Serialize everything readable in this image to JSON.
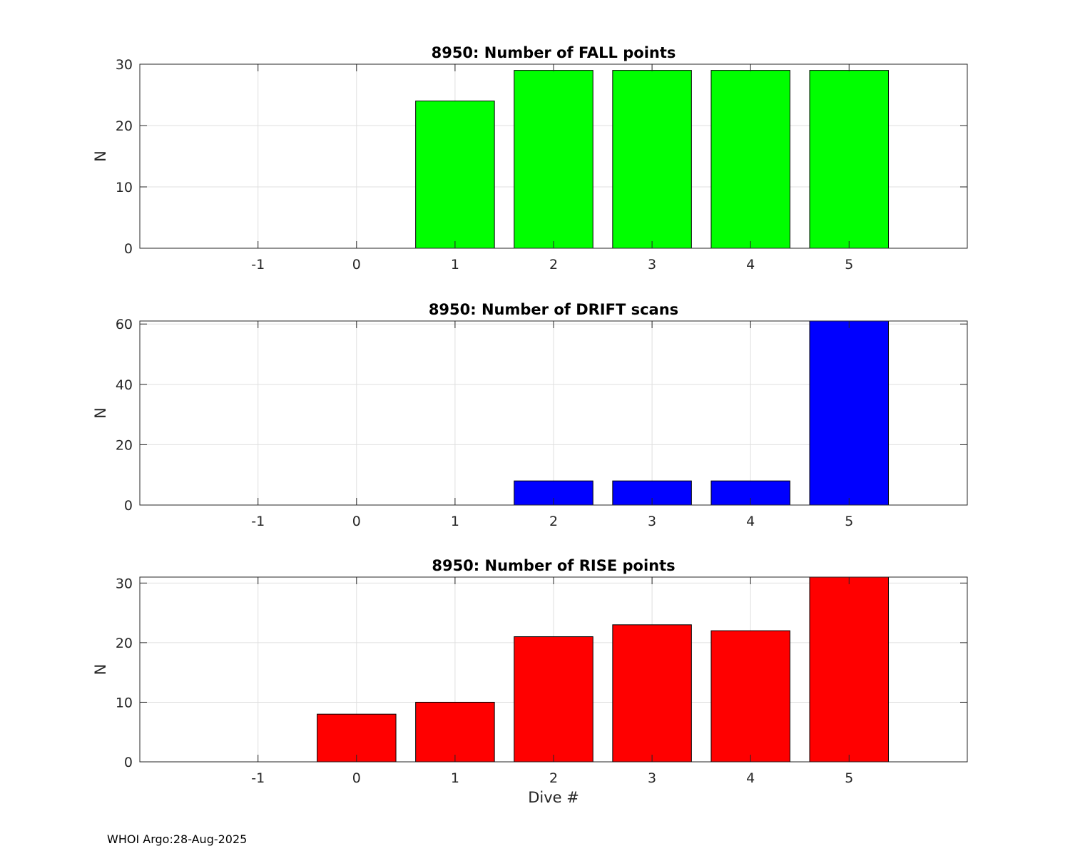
{
  "footer": "WHOI Argo:28-Aug-2025",
  "chart_data": [
    {
      "type": "bar",
      "title": "8950: Number of FALL points",
      "ylabel": "N",
      "xlabel": "",
      "categories": [
        -1,
        0,
        1,
        2,
        3,
        4,
        5
      ],
      "values": [
        0,
        0,
        24,
        29,
        29,
        29,
        29
      ],
      "color": "#00ff00",
      "xlim": [
        -2.2,
        6.2
      ],
      "ylim": [
        0,
        30
      ],
      "yticks": [
        0,
        10,
        20,
        30
      ],
      "grid": true
    },
    {
      "type": "bar",
      "title": "8950: Number of DRIFT scans",
      "ylabel": "N",
      "xlabel": "",
      "categories": [
        -1,
        0,
        1,
        2,
        3,
        4,
        5
      ],
      "values": [
        0,
        0,
        0,
        8,
        8,
        8,
        61
      ],
      "color": "#0000ff",
      "xlim": [
        -2.2,
        6.2
      ],
      "ylim": [
        0,
        61
      ],
      "yticks": [
        0,
        20,
        40,
        60
      ],
      "grid": true
    },
    {
      "type": "bar",
      "title": "8950: Number of RISE points",
      "ylabel": "N",
      "xlabel": "Dive #",
      "categories": [
        -1,
        0,
        1,
        2,
        3,
        4,
        5
      ],
      "values": [
        0,
        8,
        10,
        21,
        23,
        22,
        31
      ],
      "color": "#ff0000",
      "xlim": [
        -2.2,
        6.2
      ],
      "ylim": [
        0,
        31
      ],
      "yticks": [
        0,
        10,
        20,
        30
      ],
      "grid": true
    }
  ]
}
